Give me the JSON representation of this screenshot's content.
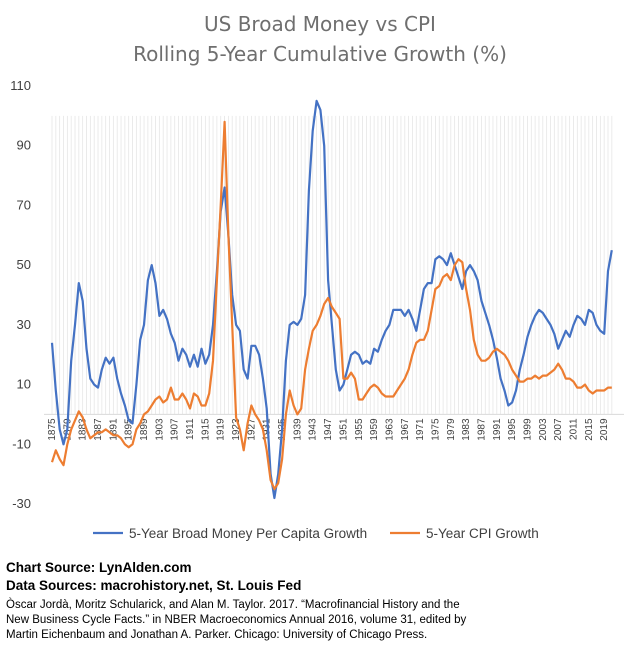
{
  "chart_data": {
    "type": "line",
    "title_lines": [
      "US Broad Money vs CPI",
      "Rolling 5-Year Cumulative Growth (%)"
    ],
    "ylim": [
      -30,
      110
    ],
    "yticks": [
      -30,
      -10,
      10,
      30,
      50,
      70,
      90,
      110
    ],
    "xlim": [
      1875,
      2020
    ],
    "xtick_labels": [
      "1875",
      "1879",
      "1883",
      "1887",
      "1891",
      "1895",
      "1899",
      "1903",
      "1907",
      "1911",
      "1915",
      "1919",
      "1923",
      "1927",
      "1931",
      "1935",
      "1939",
      "1943",
      "1947",
      "1951",
      "1955",
      "1959",
      "1963",
      "1967",
      "1971",
      "1975",
      "1979",
      "1983",
      "1987",
      "1991",
      "1995",
      "1999",
      "2003",
      "2007",
      "2011",
      "2015",
      "2019"
    ],
    "grid": "vertical-dense-light",
    "legend_position": "bottom",
    "colors": {
      "money": "#4472c4",
      "cpi": "#ed7d31"
    },
    "series": [
      {
        "name": "5-Year Broad Money Per Capita Growth",
        "points": [
          [
            1875,
            24
          ],
          [
            1876,
            8
          ],
          [
            1877,
            -5
          ],
          [
            1878,
            -10
          ],
          [
            1879,
            -5
          ],
          [
            1880,
            18
          ],
          [
            1881,
            30
          ],
          [
            1882,
            44
          ],
          [
            1883,
            38
          ],
          [
            1884,
            22
          ],
          [
            1885,
            12
          ],
          [
            1886,
            10
          ],
          [
            1887,
            9
          ],
          [
            1888,
            15
          ],
          [
            1889,
            19
          ],
          [
            1890,
            17
          ],
          [
            1891,
            19
          ],
          [
            1892,
            12
          ],
          [
            1893,
            7
          ],
          [
            1894,
            3
          ],
          [
            1895,
            -2
          ],
          [
            1896,
            -3
          ],
          [
            1897,
            10
          ],
          [
            1898,
            25
          ],
          [
            1899,
            30
          ],
          [
            1900,
            45
          ],
          [
            1901,
            50
          ],
          [
            1902,
            44
          ],
          [
            1903,
            33
          ],
          [
            1904,
            35
          ],
          [
            1905,
            32
          ],
          [
            1906,
            27
          ],
          [
            1907,
            24
          ],
          [
            1908,
            18
          ],
          [
            1909,
            22
          ],
          [
            1910,
            20
          ],
          [
            1911,
            16
          ],
          [
            1912,
            20
          ],
          [
            1913,
            16
          ],
          [
            1914,
            22
          ],
          [
            1915,
            17
          ],
          [
            1916,
            20
          ],
          [
            1917,
            30
          ],
          [
            1918,
            48
          ],
          [
            1919,
            68
          ],
          [
            1920,
            76
          ],
          [
            1921,
            60
          ],
          [
            1922,
            40
          ],
          [
            1923,
            30
          ],
          [
            1924,
            28
          ],
          [
            1925,
            15
          ],
          [
            1926,
            12
          ],
          [
            1927,
            23
          ],
          [
            1928,
            23
          ],
          [
            1929,
            20
          ],
          [
            1930,
            12
          ],
          [
            1931,
            2
          ],
          [
            1932,
            -20
          ],
          [
            1933,
            -28
          ],
          [
            1934,
            -20
          ],
          [
            1935,
            -5
          ],
          [
            1936,
            18
          ],
          [
            1937,
            30
          ],
          [
            1938,
            31
          ],
          [
            1939,
            30
          ],
          [
            1940,
            32
          ],
          [
            1941,
            40
          ],
          [
            1942,
            75
          ],
          [
            1943,
            95
          ],
          [
            1944,
            105
          ],
          [
            1945,
            102
          ],
          [
            1946,
            90
          ],
          [
            1947,
            45
          ],
          [
            1948,
            30
          ],
          [
            1949,
            15
          ],
          [
            1950,
            8
          ],
          [
            1951,
            10
          ],
          [
            1952,
            15
          ],
          [
            1953,
            20
          ],
          [
            1954,
            21
          ],
          [
            1955,
            20
          ],
          [
            1956,
            17
          ],
          [
            1957,
            18
          ],
          [
            1958,
            17
          ],
          [
            1959,
            22
          ],
          [
            1960,
            21
          ],
          [
            1961,
            25
          ],
          [
            1962,
            28
          ],
          [
            1963,
            30
          ],
          [
            1964,
            35
          ],
          [
            1965,
            35
          ],
          [
            1966,
            35
          ],
          [
            1967,
            33
          ],
          [
            1968,
            35
          ],
          [
            1969,
            32
          ],
          [
            1970,
            28
          ],
          [
            1971,
            35
          ],
          [
            1972,
            42
          ],
          [
            1973,
            44
          ],
          [
            1974,
            44
          ],
          [
            1975,
            52
          ],
          [
            1976,
            53
          ],
          [
            1977,
            52
          ],
          [
            1978,
            50
          ],
          [
            1979,
            54
          ],
          [
            1980,
            50
          ],
          [
            1981,
            46
          ],
          [
            1982,
            42
          ],
          [
            1983,
            48
          ],
          [
            1984,
            50
          ],
          [
            1985,
            48
          ],
          [
            1986,
            45
          ],
          [
            1987,
            38
          ],
          [
            1988,
            34
          ],
          [
            1989,
            30
          ],
          [
            1990,
            25
          ],
          [
            1991,
            19
          ],
          [
            1992,
            12
          ],
          [
            1993,
            8
          ],
          [
            1994,
            3
          ],
          [
            1995,
            4
          ],
          [
            1996,
            8
          ],
          [
            1997,
            15
          ],
          [
            1998,
            20
          ],
          [
            1999,
            26
          ],
          [
            2000,
            30
          ],
          [
            2001,
            33
          ],
          [
            2002,
            35
          ],
          [
            2003,
            34
          ],
          [
            2004,
            32
          ],
          [
            2005,
            30
          ],
          [
            2006,
            27
          ],
          [
            2007,
            22
          ],
          [
            2008,
            25
          ],
          [
            2009,
            28
          ],
          [
            2010,
            26
          ],
          [
            2011,
            30
          ],
          [
            2012,
            33
          ],
          [
            2013,
            32
          ],
          [
            2014,
            30
          ],
          [
            2015,
            35
          ],
          [
            2016,
            34
          ],
          [
            2017,
            30
          ],
          [
            2018,
            28
          ],
          [
            2019,
            27
          ],
          [
            2020,
            48
          ],
          [
            2021,
            55
          ]
        ]
      },
      {
        "name": "5-Year CPI Growth",
        "points": [
          [
            1875,
            -16
          ],
          [
            1876,
            -12
          ],
          [
            1877,
            -15
          ],
          [
            1878,
            -17
          ],
          [
            1879,
            -10
          ],
          [
            1880,
            -5
          ],
          [
            1881,
            -2
          ],
          [
            1882,
            1
          ],
          [
            1883,
            -1
          ],
          [
            1884,
            -5
          ],
          [
            1885,
            -8
          ],
          [
            1886,
            -7
          ],
          [
            1887,
            -6
          ],
          [
            1888,
            -6
          ],
          [
            1889,
            -5
          ],
          [
            1890,
            -6
          ],
          [
            1891,
            -7
          ],
          [
            1892,
            -7
          ],
          [
            1893,
            -8
          ],
          [
            1894,
            -10
          ],
          [
            1895,
            -11
          ],
          [
            1896,
            -10
          ],
          [
            1897,
            -5
          ],
          [
            1898,
            -3
          ],
          [
            1899,
            0
          ],
          [
            1900,
            1
          ],
          [
            1901,
            3
          ],
          [
            1902,
            5
          ],
          [
            1903,
            6
          ],
          [
            1904,
            4
          ],
          [
            1905,
            5
          ],
          [
            1906,
            9
          ],
          [
            1907,
            5
          ],
          [
            1908,
            5
          ],
          [
            1909,
            7
          ],
          [
            1910,
            5
          ],
          [
            1911,
            2
          ],
          [
            1912,
            7
          ],
          [
            1913,
            6
          ],
          [
            1914,
            3
          ],
          [
            1915,
            3
          ],
          [
            1916,
            7
          ],
          [
            1917,
            18
          ],
          [
            1918,
            45
          ],
          [
            1919,
            70
          ],
          [
            1920,
            98
          ],
          [
            1921,
            60
          ],
          [
            1922,
            30
          ],
          [
            1923,
            -1
          ],
          [
            1924,
            -5
          ],
          [
            1925,
            -12
          ],
          [
            1926,
            -3
          ],
          [
            1927,
            3
          ],
          [
            1928,
            0
          ],
          [
            1929,
            -2
          ],
          [
            1930,
            -5
          ],
          [
            1931,
            -12
          ],
          [
            1932,
            -22
          ],
          [
            1933,
            -25
          ],
          [
            1934,
            -23
          ],
          [
            1935,
            -15
          ],
          [
            1936,
            0
          ],
          [
            1937,
            8
          ],
          [
            1938,
            3
          ],
          [
            1939,
            0
          ],
          [
            1940,
            2
          ],
          [
            1941,
            15
          ],
          [
            1942,
            22
          ],
          [
            1943,
            28
          ],
          [
            1944,
            30
          ],
          [
            1945,
            33
          ],
          [
            1946,
            37
          ],
          [
            1947,
            39
          ],
          [
            1948,
            36
          ],
          [
            1949,
            34
          ],
          [
            1950,
            32
          ],
          [
            1951,
            12
          ],
          [
            1952,
            12
          ],
          [
            1953,
            14
          ],
          [
            1954,
            12
          ],
          [
            1955,
            5
          ],
          [
            1956,
            5
          ],
          [
            1957,
            7
          ],
          [
            1958,
            9
          ],
          [
            1959,
            10
          ],
          [
            1960,
            9
          ],
          [
            1961,
            7
          ],
          [
            1962,
            6
          ],
          [
            1963,
            6
          ],
          [
            1964,
            6
          ],
          [
            1965,
            8
          ],
          [
            1966,
            10
          ],
          [
            1967,
            12
          ],
          [
            1968,
            15
          ],
          [
            1969,
            20
          ],
          [
            1970,
            24
          ],
          [
            1971,
            25
          ],
          [
            1972,
            25
          ],
          [
            1973,
            28
          ],
          [
            1974,
            35
          ],
          [
            1975,
            42
          ],
          [
            1976,
            43
          ],
          [
            1977,
            46
          ],
          [
            1978,
            47
          ],
          [
            1979,
            45
          ],
          [
            1980,
            50
          ],
          [
            1981,
            52
          ],
          [
            1982,
            51
          ],
          [
            1983,
            42
          ],
          [
            1984,
            35
          ],
          [
            1985,
            25
          ],
          [
            1986,
            20
          ],
          [
            1987,
            18
          ],
          [
            1988,
            18
          ],
          [
            1989,
            19
          ],
          [
            1990,
            21
          ],
          [
            1991,
            22
          ],
          [
            1992,
            21
          ],
          [
            1993,
            20
          ],
          [
            1994,
            18
          ],
          [
            1995,
            15
          ],
          [
            1996,
            13
          ],
          [
            1997,
            11
          ],
          [
            1998,
            11
          ],
          [
            1999,
            12
          ],
          [
            2000,
            12
          ],
          [
            2001,
            13
          ],
          [
            2002,
            12
          ],
          [
            2003,
            13
          ],
          [
            2004,
            13
          ],
          [
            2005,
            14
          ],
          [
            2006,
            15
          ],
          [
            2007,
            17
          ],
          [
            2008,
            15
          ],
          [
            2009,
            12
          ],
          [
            2010,
            12
          ],
          [
            2011,
            11
          ],
          [
            2012,
            9
          ],
          [
            2013,
            9
          ],
          [
            2014,
            10
          ],
          [
            2015,
            8
          ],
          [
            2016,
            7
          ],
          [
            2017,
            8
          ],
          [
            2018,
            8
          ],
          [
            2019,
            8
          ],
          [
            2020,
            9
          ],
          [
            2021,
            9
          ]
        ]
      }
    ]
  },
  "credits": {
    "chart_source": "Chart Source: LynAlden.com",
    "data_sources": "Data Sources: macrohistory.net, St. Louis Fed",
    "citation_lines": [
      "Òscar Jordà, Moritz Schularick, and Alan M. Taylor. 2017. “Macrofinancial History and the",
      "New Business Cycle Facts.” in NBER Macroeconomics Annual 2016, volume 31, edited by",
      "Martin Eichenbaum and Jonathan A. Parker. Chicago: University of Chicago Press."
    ]
  }
}
